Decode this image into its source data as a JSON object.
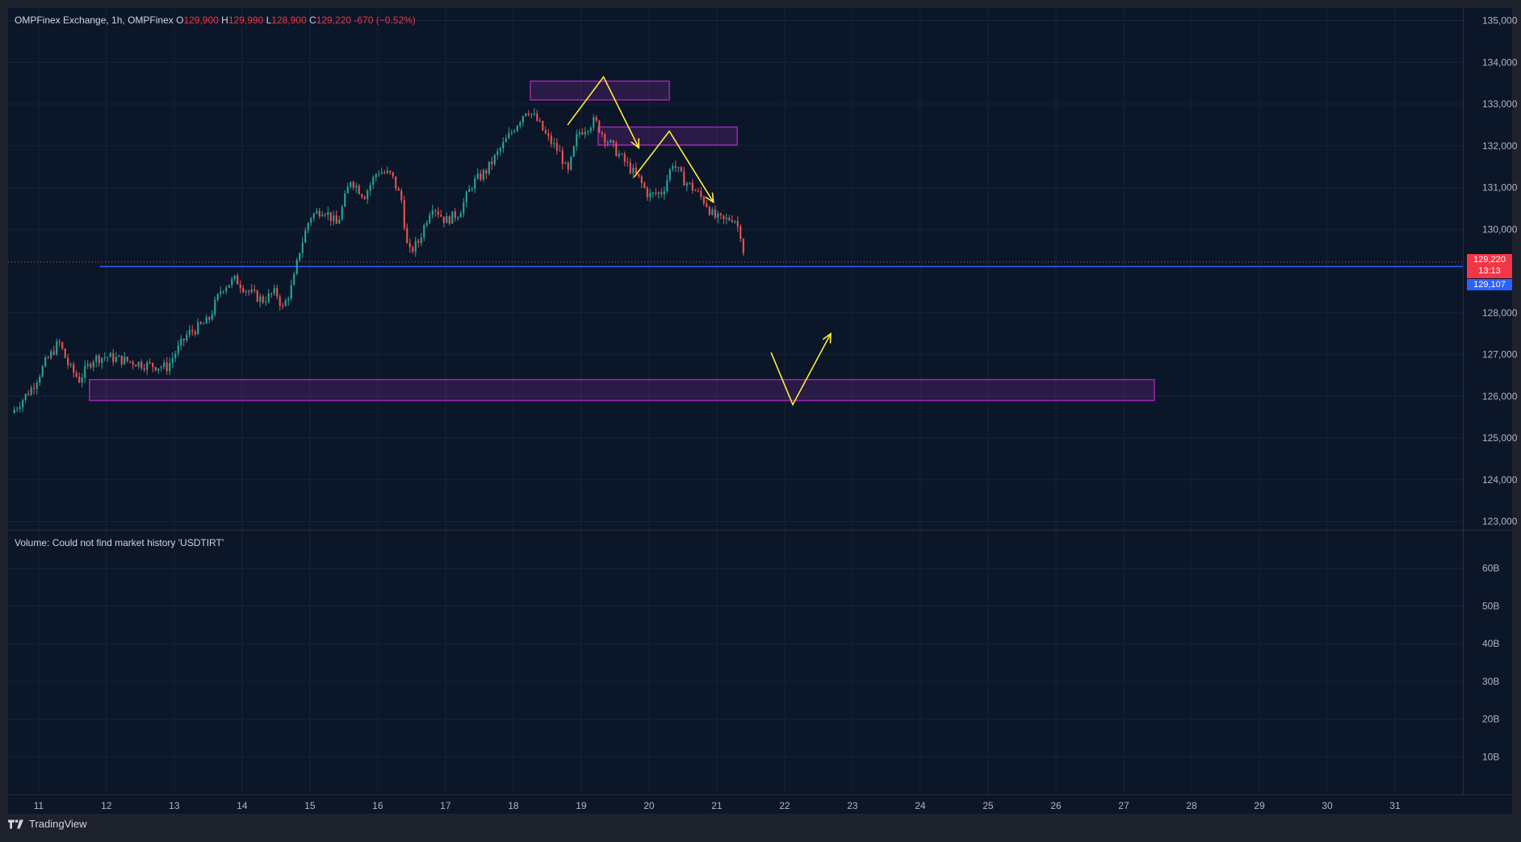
{
  "legend": {
    "symbol": "OMPFinex Exchange, 1h, OMPFinex",
    "o_label": "O",
    "o_value": "129,900",
    "h_label": "H",
    "h_value": "129,990",
    "l_label": "L",
    "l_value": "128,900",
    "c_label": "C",
    "c_value": "129,220",
    "change": "-670 (−0.52%)"
  },
  "volume_legend": "Volume: Could not find market history 'USDTIRT'",
  "footer": {
    "brand": "TradingView",
    "logo_icon": "tradingview-logo-icon"
  },
  "price_tags": {
    "last_price": "129,220",
    "countdown": "13:13",
    "line_price": "129,107"
  },
  "colors": {
    "background": "#0b1628",
    "up": "#26a69a",
    "down": "#ef5350",
    "zone": "#9c27b0",
    "horizontal_line": "#2962ff",
    "annotation": "#ffeb3b"
  },
  "chart_data": {
    "type": "candlestick",
    "x_tick_labels": [
      "11",
      "12",
      "13",
      "14",
      "15",
      "16",
      "17",
      "18",
      "19",
      "20",
      "21",
      "22",
      "23",
      "24",
      "25",
      "26",
      "27",
      "28",
      "29",
      "30",
      "31"
    ],
    "y_tick_labels": [
      "135,000",
      "134,000",
      "133,000",
      "132,000",
      "131,000",
      "130,000",
      "128,000",
      "127,000",
      "126,000",
      "125,000",
      "124,000",
      "123,000"
    ],
    "ylim": [
      122800,
      135300
    ],
    "volume_tick_labels": [
      "60B",
      "50B",
      "40B",
      "30B",
      "20B",
      "10B"
    ],
    "volume_ylim": [
      0,
      70000000000
    ],
    "xlim_days": [
      10.55,
      32.0
    ],
    "horizontal_line_price": 129107,
    "last_price": 129220,
    "close_path": [
      [
        10.6,
        125600
      ],
      [
        10.9,
        126200
      ],
      [
        11.1,
        126800
      ],
      [
        11.3,
        127300
      ],
      [
        11.45,
        126700
      ],
      [
        11.6,
        126400
      ],
      [
        11.8,
        126900
      ],
      [
        12.0,
        126950
      ],
      [
        12.3,
        126850
      ],
      [
        12.6,
        126750
      ],
      [
        12.9,
        126700
      ],
      [
        13.0,
        127000
      ],
      [
        13.2,
        127500
      ],
      [
        13.5,
        127800
      ],
      [
        13.7,
        128600
      ],
      [
        13.9,
        128800
      ],
      [
        14.1,
        128500
      ],
      [
        14.3,
        128300
      ],
      [
        14.5,
        128500
      ],
      [
        14.6,
        128100
      ],
      [
        14.75,
        128700
      ],
      [
        14.85,
        129500
      ],
      [
        15.0,
        130300
      ],
      [
        15.2,
        130500
      ],
      [
        15.4,
        130100
      ],
      [
        15.6,
        131200
      ],
      [
        15.8,
        130800
      ],
      [
        16.0,
        131400
      ],
      [
        16.2,
        131300
      ],
      [
        16.35,
        130700
      ],
      [
        16.45,
        129400
      ],
      [
        16.6,
        129700
      ],
      [
        16.8,
        130600
      ],
      [
        17.0,
        130200
      ],
      [
        17.2,
        130400
      ],
      [
        17.4,
        131100
      ],
      [
        17.6,
        131400
      ],
      [
        17.8,
        131900
      ],
      [
        18.0,
        132400
      ],
      [
        18.2,
        132900
      ],
      [
        18.35,
        132600
      ],
      [
        18.5,
        132200
      ],
      [
        18.7,
        131800
      ],
      [
        18.8,
        131300
      ],
      [
        18.95,
        132300
      ],
      [
        19.2,
        132600
      ],
      [
        19.35,
        132200
      ],
      [
        19.55,
        131800
      ],
      [
        19.7,
        131500
      ],
      [
        19.85,
        131200
      ],
      [
        20.0,
        130800
      ],
      [
        20.2,
        130900
      ],
      [
        20.35,
        131600
      ],
      [
        20.5,
        131200
      ],
      [
        20.7,
        130900
      ],
      [
        20.85,
        130600
      ],
      [
        20.95,
        130300
      ],
      [
        21.1,
        130200
      ],
      [
        21.25,
        130300
      ],
      [
        21.35,
        129900
      ],
      [
        21.42,
        129220
      ]
    ],
    "zones": [
      {
        "day_start": 18.25,
        "day_end": 20.3,
        "price_top": 133550,
        "price_bottom": 133100
      },
      {
        "day_start": 19.25,
        "day_end": 21.3,
        "price_top": 132450,
        "price_bottom": 132020
      },
      {
        "day_start": 11.75,
        "day_end": 27.45,
        "price_top": 126400,
        "price_bottom": 125900
      }
    ],
    "annotation_paths": [
      {
        "points": [
          [
            18.8,
            132500
          ],
          [
            19.33,
            133650
          ],
          [
            19.85,
            131950
          ]
        ],
        "arrow_end": true
      },
      {
        "points": [
          [
            19.78,
            131250
          ],
          [
            20.3,
            132350
          ],
          [
            20.95,
            130650
          ]
        ],
        "arrow_end": true
      },
      {
        "points": [
          [
            21.8,
            127050
          ],
          [
            22.12,
            125800
          ],
          [
            22.68,
            127500
          ]
        ],
        "arrow_end": true
      }
    ]
  }
}
